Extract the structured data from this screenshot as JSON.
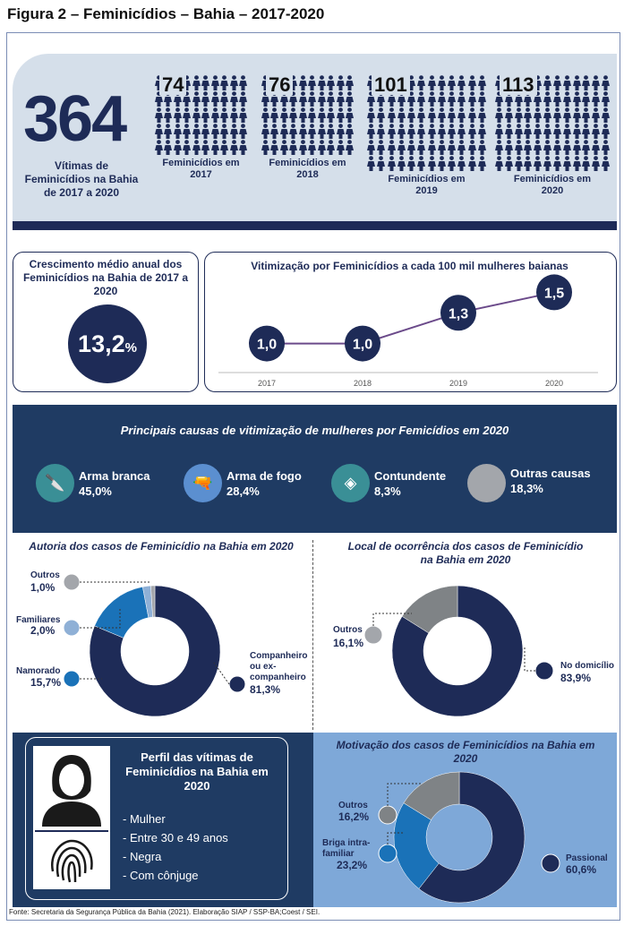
{
  "title": "Figura 2 – Feminicídios – Bahia – 2017-2020",
  "total": {
    "value": "364",
    "label": "Vítimas de Feminicídios na Bahia de 2017 a 2020"
  },
  "years": [
    {
      "count": "74",
      "label": "Feminicídios em 2017"
    },
    {
      "count": "76",
      "label": "Feminicídios em 2018"
    },
    {
      "count": "101",
      "label": "Feminicídios em 2019"
    },
    {
      "count": "113",
      "label": "Feminicídios em 2020"
    }
  ],
  "growth": {
    "label": "Crescimento médio anual dos Feminicídios na Bahia de 2017 a 2020",
    "value": "13,2",
    "unit": "%"
  },
  "rate_chart": {
    "title": "Vitimização por Feminicídios a cada 100 mil mulheres baianas",
    "chart_data": {
      "type": "line",
      "x": [
        "2017",
        "2018",
        "2019",
        "2020"
      ],
      "values": [
        1.0,
        1.0,
        1.3,
        1.5
      ],
      "labels": [
        "1,0",
        "1,0",
        "1,3",
        "1,5"
      ]
    }
  },
  "causes": {
    "title": "Principais causas de vitimização de mulheres por Femicídios em 2020",
    "items": [
      {
        "name": "Arma branca",
        "value": "45,0%",
        "icon": "knife-icon",
        "color": "#3a8f96"
      },
      {
        "name": "Arma de fogo",
        "value": "28,4%",
        "icon": "gun-icon",
        "color": "#5b8fd0"
      },
      {
        "name": "Contundente",
        "value": "8,3%",
        "icon": "rock-icon",
        "color": "#3a8f96"
      },
      {
        "name": "Outras causas",
        "value": "18,3%",
        "icon": "circle-icon",
        "color": "#a3a6ab"
      }
    ]
  },
  "autoria": {
    "title": "Autoria dos casos de Feminicídio na Bahia em 2020",
    "chart_data": {
      "type": "pie",
      "categories": [
        "Companheiro ou ex-companheiro",
        "Namorado",
        "Familiares",
        "Outros"
      ],
      "values": [
        81.3,
        15.7,
        2.0,
        1.0
      ],
      "colors": [
        "#1e2b57",
        "#1a72b8",
        "#8fb0d6",
        "#a3a6ab"
      ]
    },
    "labels": {
      "companheiro": "Companheiro ou ex-companheiro",
      "companheiro_value": "81,3%",
      "namorado": "Namorado",
      "namorado_value": "15,7%",
      "familiares": "Familiares",
      "familiares_value": "2,0%",
      "outros": "Outros",
      "outros_value": "1,0%"
    }
  },
  "local": {
    "title": "Local de ocorrência dos casos de Feminicídio na Bahia em 2020",
    "chart_data": {
      "type": "pie",
      "categories": [
        "No domicílio",
        "Outros"
      ],
      "values": [
        83.9,
        16.1
      ],
      "colors": [
        "#1e2b57",
        "#7f8386"
      ]
    },
    "labels": {
      "domicilio": "No domicílio",
      "domicilio_value": "83,9%",
      "outros": "Outros",
      "outros_value": "16,1%"
    }
  },
  "perfil": {
    "title": "Perfil das vítimas de Feminicídios na Bahia em 2020",
    "items": [
      "- Mulher",
      "- Entre 30 e 49 anos",
      "- Negra",
      "- Com cônjuge"
    ]
  },
  "motivacao": {
    "title": "Motivação dos casos de Feminicídios na Bahia em 2020",
    "chart_data": {
      "type": "pie",
      "categories": [
        "Passional",
        "Briga intra-familiar",
        "Outros"
      ],
      "values": [
        60.6,
        23.2,
        16.2
      ],
      "colors": [
        "#1e2b57",
        "#1a72b8",
        "#7f8386"
      ]
    },
    "labels": {
      "passional": "Passional",
      "passional_value": "60,6%",
      "briga": "Briga intra-familiar",
      "briga_value": "23,2%",
      "outros": "Outros",
      "outros_value": "16,2%"
    }
  },
  "source": "Fonte: Secretaria da Segurança Pública da Bahia (2021). Elaboração SIAP / SSP-BA;Coest / SEI."
}
